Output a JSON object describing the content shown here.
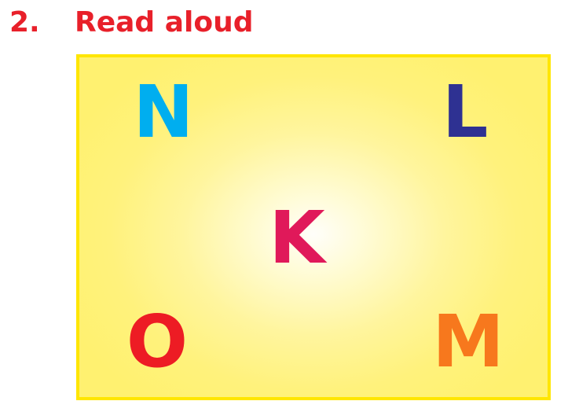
{
  "heading": {
    "number": "2.",
    "title": "Read aloud"
  },
  "letters": [
    {
      "char": "N",
      "color": "#00aeef"
    },
    {
      "char": "L",
      "color": "#2e3192"
    },
    {
      "char": "K",
      "color": "#e0195a"
    },
    {
      "char": "O",
      "color": "#ed1c24"
    },
    {
      "char": "M",
      "color": "#f7781d"
    }
  ],
  "colors": {
    "heading": "#e8202a",
    "card_border": "#ffe600",
    "card_fill": "#fff170"
  }
}
